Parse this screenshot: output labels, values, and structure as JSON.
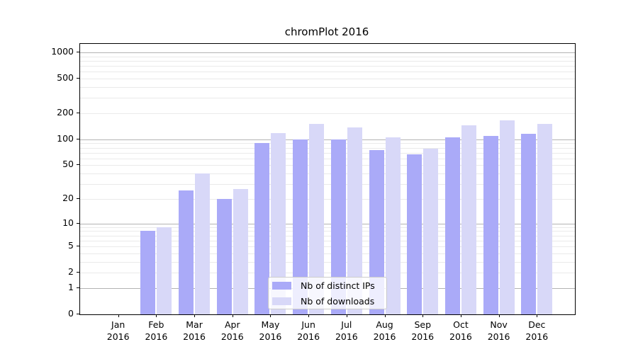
{
  "chart_data": {
    "type": "bar",
    "title": "chromPlot 2016",
    "year": "2016",
    "categories": [
      "Jan",
      "Feb",
      "Mar",
      "Apr",
      "May",
      "Jun",
      "Jul",
      "Aug",
      "Sep",
      "Oct",
      "Nov",
      "Dec"
    ],
    "series": [
      {
        "key": "distinct-ips",
        "name": "Nb of distinct IPs",
        "color": "#aaaaf8",
        "values": [
          0,
          8,
          25,
          20,
          90,
          100,
          100,
          75,
          67,
          105,
          110,
          115
        ]
      },
      {
        "key": "downloads",
        "name": "Nb of downloads",
        "color": "#d8d8f8",
        "values": [
          0,
          9,
          40,
          26,
          117,
          150,
          137,
          105,
          78,
          145,
          165,
          152
        ]
      }
    ],
    "yticks": [
      0,
      1,
      2,
      5,
      10,
      20,
      50,
      100,
      200,
      500,
      1000
    ],
    "yscale": "log1p",
    "ylim": [
      0,
      1250
    ],
    "xlabel": "",
    "ylabel": "",
    "grid": "both",
    "legend_position": "lower-center"
  },
  "colors": {
    "bar_distinct_ips": "#aaaaf8",
    "bar_downloads": "#d8d8f8",
    "grid_major": "#b3b3b3",
    "grid_minor": "#eaeaea",
    "axis": "#000000",
    "legend_border": "#cccccc",
    "background": "#ffffff"
  }
}
